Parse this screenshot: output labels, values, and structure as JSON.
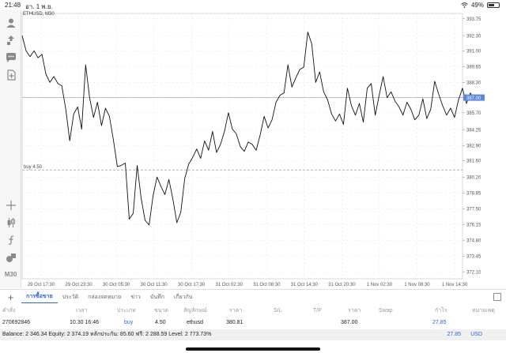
{
  "status": {
    "time": "21:48",
    "date": "อา. 1 พ.ย.",
    "battery": "49%",
    "battery_level": 0.49
  },
  "toolbar": {
    "timeframe": "M30"
  },
  "chart": {
    "symbol_label": "ETHUSD, M30",
    "current_price": "387.00",
    "order_line_label": "buy 4.50",
    "colors": {
      "line": "#111111",
      "grid": "#e6e6e6",
      "price_tag": "#5b87e0",
      "order_line": "#888888"
    }
  },
  "chart_data": {
    "type": "line",
    "y_ticks": [
      "393.75",
      "392.30",
      "391.00",
      "389.65",
      "388.30",
      "387.00",
      "385.70",
      "384.25",
      "382.90",
      "381.60",
      "380.20",
      "378.85",
      "377.50",
      "376.15",
      "374.80",
      "373.45",
      "372.10"
    ],
    "x_ticks": [
      "29 Oct 17:30",
      "29 Oct 23:30",
      "30 Oct 05:30",
      "30 Oct 11:30",
      "30 Oct 17:30",
      "31 Oct 02:30",
      "31 Oct 08:30",
      "31 Oct 14:30",
      "31 Oct 20:30",
      "1 Nov 02:30",
      "1 Nov 08:30",
      "1 Nov 14:30"
    ],
    "ylim": [
      371.5,
      394.2
    ],
    "current_price": 387.0,
    "order_level": 380.81,
    "values": [
      392.3,
      391.0,
      390.5,
      391.0,
      390.4,
      390.7,
      389.0,
      388.3,
      388.8,
      388.2,
      388.0,
      386.0,
      383.3,
      385.6,
      386.2,
      384.3,
      389.8,
      387.0,
      385.3,
      386.6,
      384.6,
      386.1,
      385.4,
      383.4,
      381.1,
      381.2,
      381.4,
      376.6,
      377.1,
      381.2,
      378.4,
      376.5,
      376.1,
      378.6,
      380.2,
      379.4,
      378.7,
      380.0,
      378.3,
      376.3,
      377.2,
      380.1,
      381.3,
      381.9,
      382.6,
      381.8,
      383.3,
      382.5,
      384.1,
      382.3,
      383.0,
      384.1,
      385.7,
      384.3,
      383.9,
      382.8,
      382.4,
      383.2,
      383.0,
      382.5,
      383.8,
      385.4,
      384.4,
      385.1,
      386.6,
      387.2,
      387.4,
      389.8,
      387.9,
      388.7,
      389.4,
      389.6,
      392.6,
      391.6,
      388.3,
      389.2,
      387.5,
      386.8,
      385.6,
      385.0,
      385.6,
      384.7,
      387.8,
      386.3,
      385.5,
      386.5,
      384.9,
      387.8,
      388.2,
      385.5,
      387.2,
      388.8,
      387.0,
      387.5,
      386.7,
      386.2,
      385.5,
      386.6,
      386.0,
      385.1,
      385.5,
      386.9,
      385.2,
      386.0,
      388.4,
      387.3,
      386.3,
      385.5,
      386.1,
      385.3,
      386.8,
      387.8,
      386.5,
      387.4,
      386.8
    ]
  },
  "terminal": {
    "tabs": [
      "การซื้อขาย",
      "ประวัติ",
      "กล่องจดหมาย",
      "ข่าว",
      "บันทึก",
      "เกี่ยวกับ"
    ],
    "columns": [
      "คำสั่ง",
      "เวลา",
      "ประเภท",
      "ขนาด",
      "สัญลักษณ์",
      "ราคา",
      "S/L",
      "T/P",
      "ราคา",
      "Swap",
      "กำไร",
      "หมายเหตุ"
    ],
    "rows": [
      {
        "order": "270692846",
        "time": "10.30 16:46",
        "type": "buy",
        "size": "4.50",
        "symbol": "ethusd",
        "price": "380.81",
        "sl": "",
        "tp": "",
        "current": "387.00",
        "swap": "",
        "profit": "27.85",
        "comment": ""
      }
    ],
    "balance_text": "Balance: 2 346.34 Equity: 2 374.19 หลักประกัน: 85.60 ฟรี: 2 288.59 Level: 2 773.73%",
    "total_profit": "27.85",
    "currency": "USD"
  }
}
